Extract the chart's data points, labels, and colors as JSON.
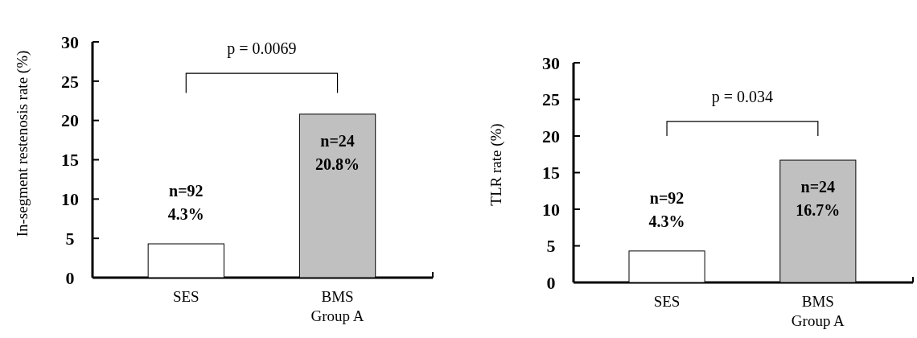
{
  "chart_data": [
    {
      "type": "bar",
      "categories": [
        "SES",
        "BMS"
      ],
      "values": [
        4.3,
        20.8
      ],
      "colors": [
        "#ffffff",
        "#c0c0c0"
      ],
      "xlabel": "Group A",
      "ylabel": "In-segment restenosis rate (%)",
      "ylim": [
        0,
        30
      ],
      "yticks": [
        0,
        5,
        10,
        15,
        20,
        25,
        30
      ],
      "value_labels": [
        "n=92\n4.3%",
        "n=24\n20.8%"
      ],
      "annotations": [
        "p = 0.0069"
      ]
    },
    {
      "type": "bar",
      "categories": [
        "SES",
        "BMS"
      ],
      "values": [
        4.3,
        16.7
      ],
      "colors": [
        "#ffffff",
        "#c0c0c0"
      ],
      "xlabel": "Group A",
      "ylabel": "TLR rate (%)",
      "ylim": [
        0,
        30
      ],
      "yticks": [
        0,
        5,
        10,
        15,
        20,
        25,
        30
      ],
      "value_labels": [
        "n=92\n4.3%",
        "n=24\n16.7%"
      ],
      "annotations": [
        "p = 0.034"
      ]
    }
  ]
}
